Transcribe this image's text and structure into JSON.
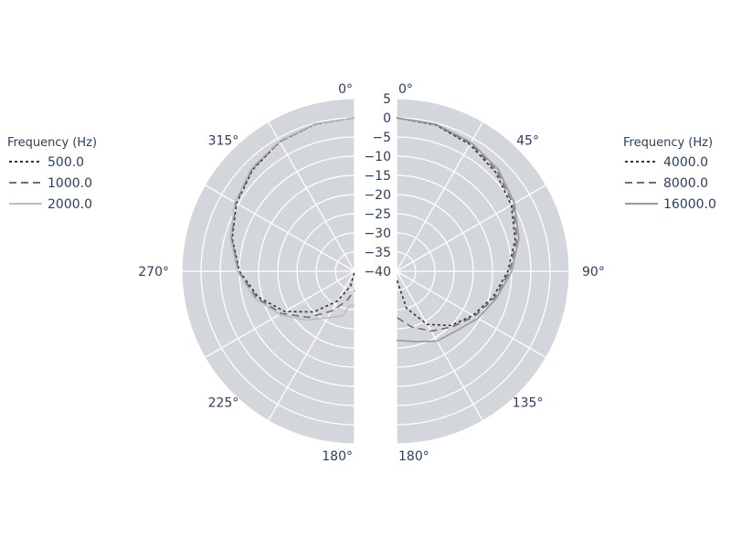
{
  "chart_data": {
    "type": "line",
    "subtype": "polar-half-pair",
    "radial_range": [
      -40,
      5
    ],
    "radial_ticks": [
      "5",
      "0",
      "−5",
      "−10",
      "−15",
      "−20",
      "−25",
      "−30",
      "−35",
      "−40"
    ],
    "grid": true,
    "colors": {
      "plot_bg": "#d3d6db",
      "grid": "#ffffff",
      "text": "#2a3f5f"
    },
    "panels": [
      {
        "side": "left",
        "angle_labels": [
          "0°",
          "315°",
          "270°",
          "225°",
          "180°"
        ],
        "legend": {
          "title": "Frequency (Hz)",
          "placement": "left"
        },
        "series": [
          {
            "name": "500.0",
            "dash": "dot",
            "color": "#333333",
            "theta": [
              0,
              15,
              30,
              45,
              60,
              75,
              90,
              105,
              120,
              135,
              150,
              165,
              180
            ],
            "r": [
              0,
              -0.3,
              -1,
              -2.5,
              -4.5,
              -7,
              -10,
              -14,
              -19,
              -25,
              -31,
              -36,
              -40
            ]
          },
          {
            "name": "1000.0",
            "dash": "dash",
            "color": "#707070",
            "theta": [
              0,
              15,
              30,
              45,
              60,
              75,
              90,
              105,
              120,
              135,
              150,
              165,
              180
            ],
            "r": [
              0,
              -0.3,
              -1,
              -2.3,
              -4.3,
              -6.8,
              -9.8,
              -13.5,
              -18,
              -23,
              -28,
              -32,
              -35
            ]
          },
          {
            "name": "2000.0",
            "dash": "solid",
            "color": "#bdbdbd",
            "theta": [
              0,
              15,
              30,
              45,
              60,
              75,
              90,
              105,
              120,
              135,
              150,
              165,
              172,
              180
            ],
            "r": [
              0,
              -0.2,
              -0.8,
              -2,
              -4,
              -6.5,
              -9.5,
              -13,
              -17.5,
              -22,
              -26,
              -28,
              -31,
              -31
            ]
          }
        ]
      },
      {
        "side": "right",
        "angle_labels": [
          "0°",
          "45°",
          "90°",
          "135°",
          "180°"
        ],
        "legend": {
          "title": "Frequency (Hz)",
          "placement": "right"
        },
        "series": [
          {
            "name": "4000.0",
            "dash": "dot",
            "color": "#333333",
            "theta": [
              0,
              15,
              30,
              45,
              60,
              75,
              90,
              105,
              120,
              135,
              150,
              165,
              180
            ],
            "r": [
              0,
              -0.5,
              -1.8,
              -3.5,
              -5.5,
              -8,
              -11,
              -14,
              -17,
              -20,
              -24,
              -30,
              -38
            ]
          },
          {
            "name": "8000.0",
            "dash": "dash",
            "color": "#707070",
            "theta": [
              0,
              15,
              30,
              45,
              60,
              75,
              90,
              105,
              120,
              135,
              150,
              165,
              180
            ],
            "r": [
              0,
              -0.4,
              -1.5,
              -3,
              -5,
              -7.5,
              -10.5,
              -13.5,
              -16.5,
              -19.5,
              -22,
              -25,
              -28
            ]
          },
          {
            "name": "16000.0",
            "dash": "solid",
            "color": "#999999",
            "theta": [
              0,
              15,
              30,
              45,
              60,
              75,
              90,
              105,
              120,
              135,
              150,
              165,
              180
            ],
            "r": [
              0,
              -0.3,
              -1.2,
              -2.5,
              -4.5,
              -7,
              -10,
              -13,
              -15.5,
              -18,
              -19,
              -21,
              -22
            ]
          }
        ]
      }
    ]
  }
}
